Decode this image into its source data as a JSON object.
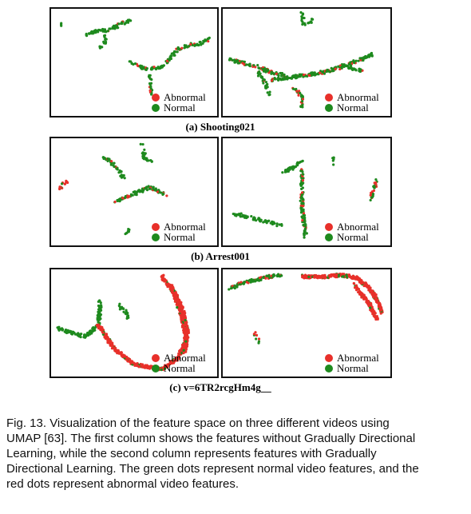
{
  "figure": {
    "rows": [
      {
        "caption": "(a) Shooting021",
        "panels": [
          {
            "legend": [
              "Abnormal",
              "Normal"
            ]
          },
          {
            "legend": [
              "Abnormal",
              "Normal"
            ]
          }
        ]
      },
      {
        "caption": "(b) Arrest001",
        "panels": [
          {
            "legend": [
              "Abnormal",
              "Normal"
            ]
          },
          {
            "legend": [
              "Abnormal",
              "Normal"
            ]
          }
        ]
      },
      {
        "caption": "(c) v=6TR2rcgHm4g__",
        "panels": [
          {
            "legend": [
              "Abnormal",
              "Normal"
            ]
          },
          {
            "legend": [
              "Abnormal",
              "Normal"
            ]
          }
        ]
      }
    ]
  },
  "caption": "Fig. 13. Visualization of the feature space on three different videos using UMAP [63]. The first column shows the features without Gradually Directional Learning, while the second column represents features with Gradually Directional Learning. The green dots represent normal video features, and the red dots represent abnormal video features."
}
